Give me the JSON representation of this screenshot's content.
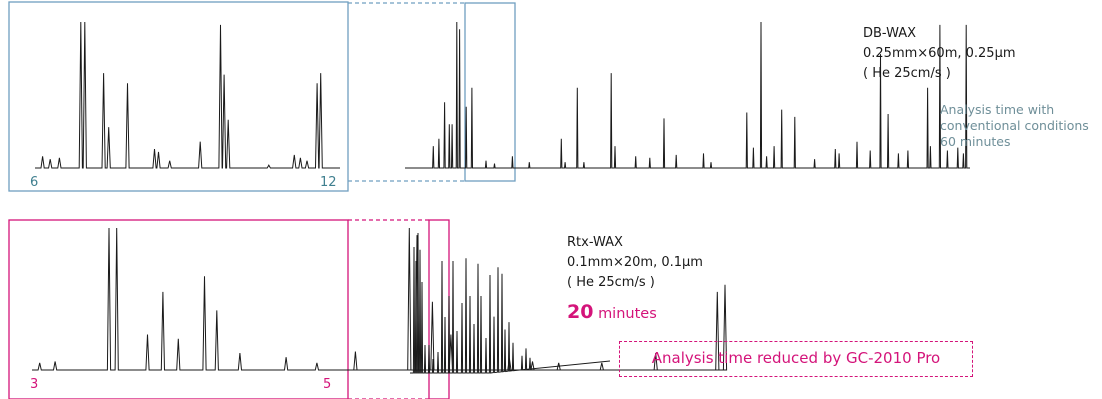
{
  "colors": {
    "top_frame": "#6f9fc0",
    "bottom_frame": "#d4147a",
    "trace": "#1a1a1a",
    "muted_text": "#6f8f99"
  },
  "top": {
    "column_name": "DB-WAX",
    "dimensions": "0.25mm×60m, 0.25μm",
    "carrier": "( He 25cm/s )",
    "note_line1": "Analysis time with",
    "note_line2": "conventional conditions",
    "note_line3": "60 minutes",
    "zoom_axis_start": "6",
    "zoom_axis_end": "12"
  },
  "bottom": {
    "column_name": "Rtx-WAX",
    "dimensions": "0.1mm×20m, 0.1μm",
    "carrier": "( He 25cm/s )",
    "time_value": "20",
    "time_unit": "minutes",
    "zoom_axis_start": "3",
    "zoom_axis_end": "5",
    "callout": "Analysis time reduced by GC-2010 Pro"
  },
  "chart_data": [
    {
      "type": "line",
      "name": "top-zoom-6-12",
      "xlim": [
        6,
        12
      ],
      "peaks": [
        [
          6.15,
          0.08
        ],
        [
          6.3,
          0.06
        ],
        [
          6.48,
          0.07
        ],
        [
          6.9,
          1.0
        ],
        [
          6.98,
          1.0
        ],
        [
          7.35,
          0.65
        ],
        [
          7.45,
          0.28
        ],
        [
          7.82,
          0.58
        ],
        [
          8.35,
          0.13
        ],
        [
          8.43,
          0.11
        ],
        [
          8.65,
          0.05
        ],
        [
          9.25,
          0.18
        ],
        [
          9.65,
          0.98
        ],
        [
          9.72,
          0.64
        ],
        [
          9.8,
          0.33
        ],
        [
          10.6,
          0.02
        ],
        [
          11.1,
          0.09
        ],
        [
          11.22,
          0.07
        ],
        [
          11.35,
          0.05
        ],
        [
          11.55,
          0.58
        ],
        [
          11.62,
          0.65
        ]
      ]
    },
    {
      "type": "line",
      "name": "DB-WAX full 60 min",
      "xlim": [
        0,
        60
      ],
      "peaks": [
        [
          3.0,
          0.15
        ],
        [
          3.6,
          0.2
        ],
        [
          4.2,
          0.45
        ],
        [
          4.7,
          0.3
        ],
        [
          5.0,
          0.3
        ],
        [
          5.5,
          1.0
        ],
        [
          5.8,
          0.95
        ],
        [
          6.5,
          0.42
        ],
        [
          7.1,
          0.55
        ],
        [
          8.6,
          0.05
        ],
        [
          9.5,
          0.03
        ],
        [
          11.4,
          0.08
        ],
        [
          13.2,
          0.04
        ],
        [
          16.6,
          0.2
        ],
        [
          17.0,
          0.04
        ],
        [
          18.3,
          0.55
        ],
        [
          19.0,
          0.04
        ],
        [
          21.9,
          0.65
        ],
        [
          22.3,
          0.15
        ],
        [
          24.5,
          0.08
        ],
        [
          26.0,
          0.07
        ],
        [
          27.5,
          0.34
        ],
        [
          28.8,
          0.09
        ],
        [
          31.7,
          0.1
        ],
        [
          32.5,
          0.04
        ],
        [
          36.3,
          0.38
        ],
        [
          37.0,
          0.14
        ],
        [
          37.8,
          1.0
        ],
        [
          38.4,
          0.08
        ],
        [
          39.2,
          0.15
        ],
        [
          40.0,
          0.4
        ],
        [
          41.4,
          0.35
        ],
        [
          43.5,
          0.06
        ],
        [
          45.7,
          0.13
        ],
        [
          46.1,
          0.1
        ],
        [
          48.0,
          0.18
        ],
        [
          49.4,
          0.12
        ],
        [
          50.5,
          0.78
        ],
        [
          51.3,
          0.37
        ],
        [
          52.4,
          0.1
        ],
        [
          53.4,
          0.12
        ],
        [
          55.5,
          0.55
        ],
        [
          55.8,
          0.15
        ],
        [
          56.8,
          0.98
        ],
        [
          57.6,
          0.12
        ],
        [
          58.7,
          0.14
        ],
        [
          59.3,
          0.1
        ],
        [
          59.6,
          0.98
        ]
      ]
    },
    {
      "type": "line",
      "name": "bottom-zoom-3-5",
      "xlim": [
        3,
        5
      ],
      "peaks": [
        [
          3.05,
          0.05
        ],
        [
          3.15,
          0.06
        ],
        [
          3.5,
          1.0
        ],
        [
          3.55,
          1.0
        ],
        [
          3.75,
          0.25
        ],
        [
          3.85,
          0.55
        ],
        [
          3.95,
          0.22
        ],
        [
          4.12,
          0.66
        ],
        [
          4.2,
          0.42
        ],
        [
          4.35,
          0.12
        ],
        [
          4.65,
          0.09
        ],
        [
          4.85,
          0.05
        ],
        [
          5.1,
          0.13
        ],
        [
          5.45,
          1.0
        ],
        [
          5.5,
          0.95
        ],
        [
          5.6,
          0.48
        ],
        [
          5.72,
          0.25
        ],
        [
          6.1,
          0.08
        ],
        [
          6.25,
          0.06
        ],
        [
          6.42,
          0.05
        ],
        [
          6.7,
          0.05
        ],
        [
          7.05,
          0.12
        ],
        [
          7.45,
          0.55
        ],
        [
          7.5,
          0.6
        ]
      ]
    },
    {
      "type": "line",
      "name": "Rtx-WAX full 20 min",
      "xlim": [
        0,
        20
      ],
      "peaks": [
        [
          0.4,
          0.9
        ],
        [
          0.6,
          0.8
        ],
        [
          0.8,
          1.0
        ],
        [
          1.0,
          0.88
        ],
        [
          1.2,
          0.65
        ],
        [
          1.5,
          0.2
        ],
        [
          1.9,
          0.2
        ],
        [
          2.3,
          0.1
        ],
        [
          2.8,
          0.15
        ],
        [
          3.2,
          0.8
        ],
        [
          3.5,
          0.4
        ],
        [
          3.9,
          0.55
        ],
        [
          4.3,
          0.8
        ],
        [
          4.7,
          0.3
        ],
        [
          5.2,
          0.5
        ],
        [
          5.6,
          0.82
        ],
        [
          6.0,
          0.55
        ],
        [
          6.4,
          0.35
        ],
        [
          6.8,
          0.78
        ],
        [
          7.1,
          0.55
        ],
        [
          7.6,
          0.25
        ],
        [
          8.0,
          0.7
        ],
        [
          8.4,
          0.4
        ],
        [
          8.8,
          0.75
        ],
        [
          9.2,
          0.7
        ],
        [
          9.5,
          0.3
        ],
        [
          9.9,
          0.35
        ],
        [
          10.3,
          0.2
        ],
        [
          11.2,
          0.1
        ],
        [
          11.6,
          0.15
        ],
        [
          12.0,
          0.08
        ]
      ]
    }
  ]
}
